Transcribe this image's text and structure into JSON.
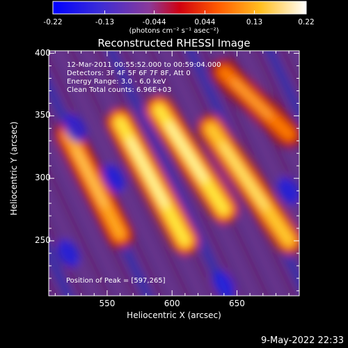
{
  "colorbar": {
    "ticks": [
      "-0.22",
      "-0.13",
      "-0.044",
      "0.044",
      "0.13",
      "0.22"
    ],
    "units": "(photons cm⁻² s⁻¹ asec⁻²)"
  },
  "title": "Reconstructed RHESSI Image",
  "info": {
    "time": "12-Mar-2011 00:55:52.000 to 00:59:04.000",
    "detectors": "Detectors: 3F 4F 5F 6F 7F 8F, Att 0",
    "energy": "Energy Range: 3.0 - 6.0 keV",
    "clean": "Clean     Total counts: 6.96E+03"
  },
  "peak": "Position of Peak = [597,265]",
  "date": "9-May-2022 22:33",
  "chart_data": {
    "type": "heatmap",
    "title": "Reconstructed RHESSI Image",
    "xlabel": "Heliocentric X (arcsec)",
    "ylabel": "Heliocentric Y (arcsec)",
    "xlim": [
      505,
      698
    ],
    "ylim": [
      206,
      402
    ],
    "x_ticks": [
      550,
      600,
      650
    ],
    "y_ticks": [
      250,
      300,
      350,
      400
    ],
    "colorbar_range": [
      -0.22,
      0.22
    ],
    "colorbar_ticks": [
      -0.22,
      -0.13,
      -0.044,
      0.044,
      0.13,
      0.22
    ],
    "colormap": [
      "#0000ff",
      "#6a3fd0",
      "#e00000",
      "#ff8800",
      "#ffff66",
      "#ffffff"
    ],
    "peak_position": [
      597,
      265
    ],
    "bright_ridges": [
      {
        "from": [
          560,
          345
        ],
        "to": [
          610,
          250
        ],
        "intensity": 0.22
      },
      {
        "from": [
          590,
          355
        ],
        "to": [
          640,
          275
        ],
        "intensity": 0.2
      },
      {
        "from": [
          630,
          340
        ],
        "to": [
          690,
          250
        ],
        "intensity": 0.16
      },
      {
        "from": [
          520,
          335
        ],
        "to": [
          560,
          255
        ],
        "intensity": 0.1
      },
      {
        "from": [
          640,
          385
        ],
        "to": [
          690,
          335
        ],
        "intensity": 0.08
      }
    ]
  }
}
